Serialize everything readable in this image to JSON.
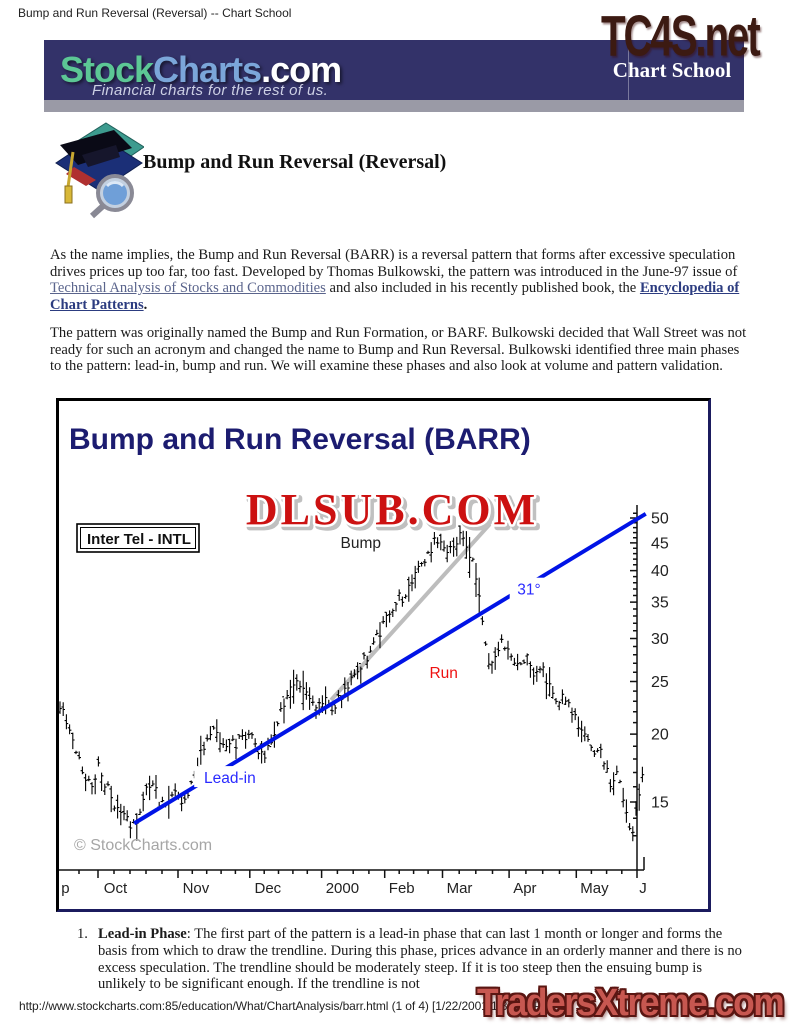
{
  "page": {
    "window_title": "Bump and Run Reversal (Reversal) -- Chart School",
    "footer_url": "http://www.stockcharts.com:85/education/What/ChartAnalysis/barr.html (1 of 4) [1/22/2001 1:34:29 PM]",
    "watermark_top": "TC4S.net",
    "watermark_top_color": "#3c1a12",
    "watermark_bottom": "TradersXtreme.com",
    "watermark_bottom_color": "#c75750"
  },
  "banner": {
    "logo_stock": "Stock",
    "logo_charts": "Charts",
    "logo_com": ".com",
    "tagline": "Financial charts for the rest of us.",
    "section": "Chart School",
    "colors": {
      "bg": "#333269",
      "bar": "#9a9aa6",
      "stock": "#5cc795",
      "charts": "#7ba6d9",
      "com": "#ffffff"
    }
  },
  "article": {
    "heading": "Bump and Run Reversal (Reversal)",
    "para1_part1": "As the name implies, the Bump and Run Reversal (BARR) is a reversal pattern that forms after excessive speculation drives prices up too far, too fast. Developed by Thomas Bulkowski, the pattern was introduced in the June-97 issue of ",
    "link1": "Technical Analysis of Stocks and Commodities",
    "link1_color": "#5a648c",
    "para1_part2": " and also included in his recently published book, the ",
    "link2": "Encyclopedia of Chart Patterns",
    "link2_color": "#2c3c80",
    "para1_part3": ".",
    "para2": "The pattern was originally named the Bump and Run Formation, or BARF. Bulkowski decided that Wall Street was not ready for such an acronym and changed the name to Bump and Run Reversal. Bulkowski identified three main phases to the pattern: lead-in, bump and run. We will examine these phases and also look at volume and pattern validation.",
    "list_item1_number": "1.",
    "list_item1_bold": "Lead-in Phase",
    "list_item1_text": ": The first part of the pattern is a lead-in phase that can last 1 month or longer and forms the basis from which to draw the trendline. During this phase, prices advance in an orderly manner and there is no excess speculation. The trendline should be moderately steep. If it is too steep then the ensuing bump is unlikely to be significant enough. If the trendline is not"
  },
  "chart_data": {
    "type": "ohlc-bar",
    "title": "Bump and Run Reversal (BARR)",
    "title_color": "#1c1c70",
    "watermark": "DLSUB.COM",
    "watermark_color": "#cc1111",
    "symbol_label": "Inter Tel - INTL",
    "copyright": "© StockCharts.com",
    "scale": "log",
    "ylim": [
      12.5,
      52
    ],
    "y_ticks": [
      50,
      45,
      40,
      35,
      30,
      25,
      20,
      15
    ],
    "x_labels": [
      {
        "text": "p",
        "t": 0.002
      },
      {
        "text": "Oct",
        "t": 0.075
      },
      {
        "text": "Nov",
        "t": 0.21
      },
      {
        "text": "Dec",
        "t": 0.333
      },
      {
        "text": "2000",
        "t": 0.455
      },
      {
        "text": "Feb",
        "t": 0.563
      },
      {
        "text": "Mar",
        "t": 0.662
      },
      {
        "text": "Apr",
        "t": 0.776
      },
      {
        "text": "May",
        "t": 0.891
      },
      {
        "text": "J",
        "t": 0.992
      }
    ],
    "month_ticks_t": [
      0.065,
      0.202,
      0.325,
      0.448,
      0.556,
      0.655,
      0.769,
      0.884,
      0.988
    ],
    "trendlines": [
      {
        "name": "bump-trendline",
        "color": "#bdbdbd",
        "from_t": 0.464,
        "from_price": 23.1,
        "to_t": 0.736,
        "to_price": 48.7,
        "width": 4
      },
      {
        "name": "lead-in-trendline",
        "color": "#0013e6",
        "from_t": 0.127,
        "from_price": 13.7,
        "to_t": 1.003,
        "to_price": 50.9,
        "width": 4
      }
    ],
    "annotations": [
      {
        "name": "annotation-bump",
        "text": "Bump",
        "color": "#222222",
        "t": 0.515,
        "price": 45.0,
        "halo": false
      },
      {
        "name": "annotation-angle",
        "text": "31°",
        "color": "#2a2aff",
        "t": 0.803,
        "price": 36.9,
        "halo": true
      },
      {
        "name": "annotation-run",
        "text": "Run",
        "color": "#ee1111",
        "t": 0.657,
        "price": 25.9,
        "halo": false
      },
      {
        "name": "annotation-lead-in",
        "text": "Lead-in",
        "color": "#2a2aff",
        "t": 0.291,
        "price": 16.6,
        "halo": true
      }
    ],
    "price_anchors": [
      [
        0.0,
        22.4
      ],
      [
        0.014,
        21.0
      ],
      [
        0.027,
        18.9
      ],
      [
        0.041,
        16.6
      ],
      [
        0.055,
        15.8
      ],
      [
        0.065,
        17.6
      ],
      [
        0.078,
        16.2
      ],
      [
        0.092,
        15.0
      ],
      [
        0.106,
        14.3
      ],
      [
        0.119,
        13.8
      ],
      [
        0.129,
        13.6
      ],
      [
        0.143,
        15.4
      ],
      [
        0.157,
        16.3
      ],
      [
        0.17,
        15.0
      ],
      [
        0.184,
        14.6
      ],
      [
        0.198,
        15.7
      ],
      [
        0.211,
        14.7
      ],
      [
        0.225,
        16.2
      ],
      [
        0.239,
        18.1
      ],
      [
        0.252,
        19.9
      ],
      [
        0.262,
        20.9
      ],
      [
        0.276,
        19.3
      ],
      [
        0.293,
        19.0
      ],
      [
        0.31,
        19.6
      ],
      [
        0.327,
        20.1
      ],
      [
        0.341,
        18.4
      ],
      [
        0.351,
        18.0
      ],
      [
        0.365,
        19.8
      ],
      [
        0.378,
        21.8
      ],
      [
        0.392,
        23.8
      ],
      [
        0.405,
        25.2
      ],
      [
        0.416,
        24.4
      ],
      [
        0.426,
        23.2
      ],
      [
        0.44,
        22.4
      ],
      [
        0.453,
        23.1
      ],
      [
        0.467,
        22.2
      ],
      [
        0.48,
        23.4
      ],
      [
        0.497,
        24.8
      ],
      [
        0.514,
        26.5
      ],
      [
        0.531,
        28.6
      ],
      [
        0.549,
        31.0
      ],
      [
        0.566,
        33.8
      ],
      [
        0.579,
        36.2
      ],
      [
        0.589,
        35.4
      ],
      [
        0.603,
        38.0
      ],
      [
        0.617,
        40.8
      ],
      [
        0.63,
        43.2
      ],
      [
        0.644,
        45.4
      ],
      [
        0.654,
        43.8
      ],
      [
        0.664,
        42.6
      ],
      [
        0.678,
        44.8
      ],
      [
        0.688,
        46.3
      ],
      [
        0.698,
        44.6
      ],
      [
        0.709,
        40.5
      ],
      [
        0.719,
        35.0
      ],
      [
        0.729,
        29.5
      ],
      [
        0.736,
        26.3
      ],
      [
        0.746,
        28.2
      ],
      [
        0.756,
        30.1
      ],
      [
        0.77,
        28.6
      ],
      [
        0.784,
        27.0
      ],
      [
        0.797,
        27.8
      ],
      [
        0.811,
        25.9
      ],
      [
        0.824,
        26.6
      ],
      [
        0.838,
        24.6
      ],
      [
        0.852,
        23.2
      ],
      [
        0.862,
        24.0
      ],
      [
        0.876,
        22.3
      ],
      [
        0.889,
        20.8
      ],
      [
        0.903,
        19.6
      ],
      [
        0.913,
        18.4
      ],
      [
        0.923,
        19.0
      ],
      [
        0.934,
        17.4
      ],
      [
        0.944,
        16.2
      ],
      [
        0.954,
        17.0
      ],
      [
        0.964,
        15.2
      ],
      [
        0.974,
        13.8
      ],
      [
        0.981,
        13.1
      ],
      [
        0.991,
        15.6
      ],
      [
        1.0,
        17.4
      ]
    ]
  }
}
